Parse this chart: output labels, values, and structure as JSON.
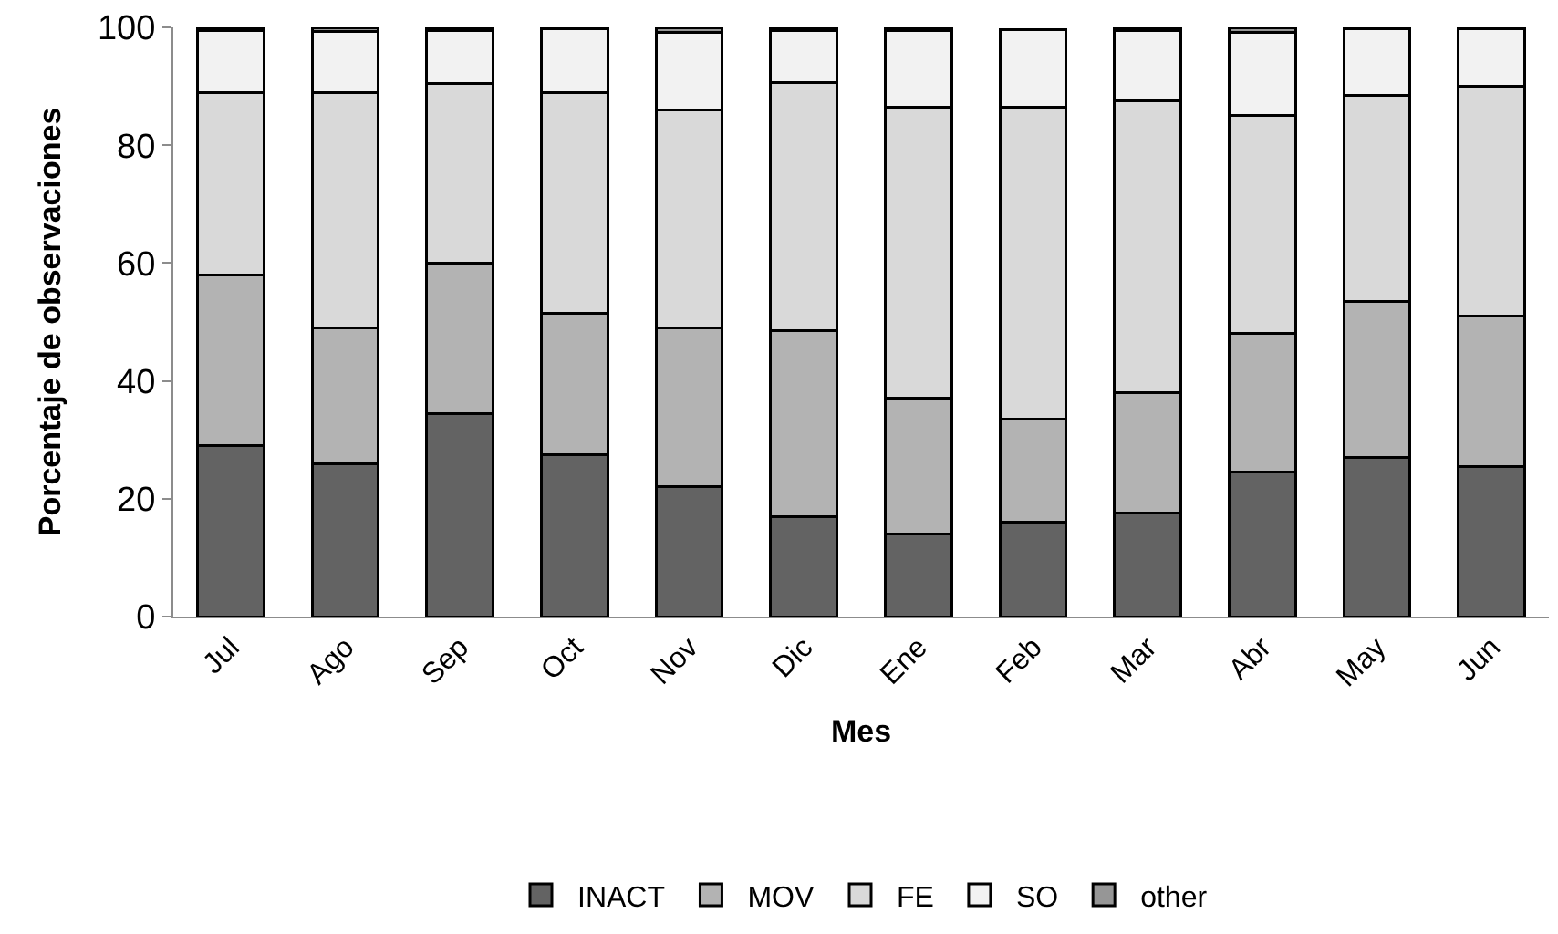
{
  "chart_data": {
    "type": "bar",
    "stacked": true,
    "xlabel": "Mes",
    "ylabel": "Porcentaje de observaciones",
    "categories": [
      "Jul",
      "Ago",
      "Sep",
      "Oct",
      "Nov",
      "Dic",
      "Ene",
      "Feb",
      "Mar",
      "Abr",
      "May",
      "Jun"
    ],
    "series": [
      {
        "name": "INACT",
        "color": "#636363",
        "values": [
          29,
          26,
          34.5,
          27.5,
          22,
          17,
          14,
          16,
          17.5,
          24.5,
          27,
          25.5
        ]
      },
      {
        "name": "MOV",
        "color": "#b3b3b3",
        "values": [
          29,
          23,
          25.5,
          24,
          27,
          31.5,
          23,
          17.5,
          20.5,
          23.5,
          26.5,
          25.5
        ]
      },
      {
        "name": "FE",
        "color": "#d9d9d9",
        "values": [
          31,
          40,
          30.5,
          37.5,
          37,
          42.2,
          49.5,
          53,
          49.5,
          37,
          35,
          39
        ]
      },
      {
        "name": "SO",
        "color": "#f2f2f2",
        "values": [
          10.5,
          10.3,
          9,
          10.7,
          13.2,
          8.8,
          13,
          13.1,
          12,
          14.2,
          11.3,
          9.7
        ]
      },
      {
        "name": "other",
        "color": "#969696",
        "values": [
          0.5,
          0.7,
          0.5,
          0.3,
          0.8,
          0.5,
          0.5,
          null,
          0.5,
          0.8,
          0.2,
          0.3
        ]
      }
    ],
    "ylim": [
      0,
      100
    ],
    "yticks": [
      0,
      20,
      40,
      60,
      80,
      100
    ],
    "legend": "bottom"
  }
}
